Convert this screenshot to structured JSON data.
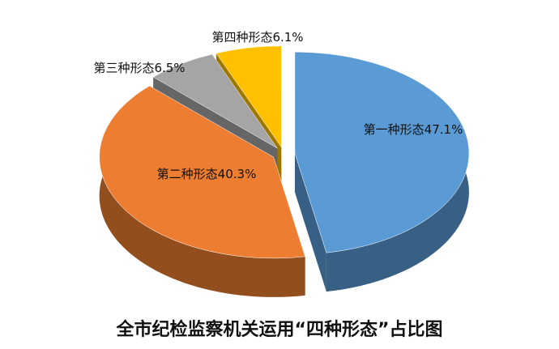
{
  "chart_data": {
    "type": "pie3d",
    "title": "全市纪检监察机关运用“四种形态”占比图",
    "categories": [
      "第一种形态",
      "第二种形态",
      "第三种形态",
      "第四种形态"
    ],
    "values": [
      47.1,
      40.3,
      6.5,
      6.1
    ],
    "value_labels": [
      "47.1%",
      "40.3%",
      "6.5%",
      "6.1%"
    ],
    "colors": [
      "#5b9bd5",
      "#ed7d31",
      "#a5a5a5",
      "#ffc000"
    ]
  }
}
